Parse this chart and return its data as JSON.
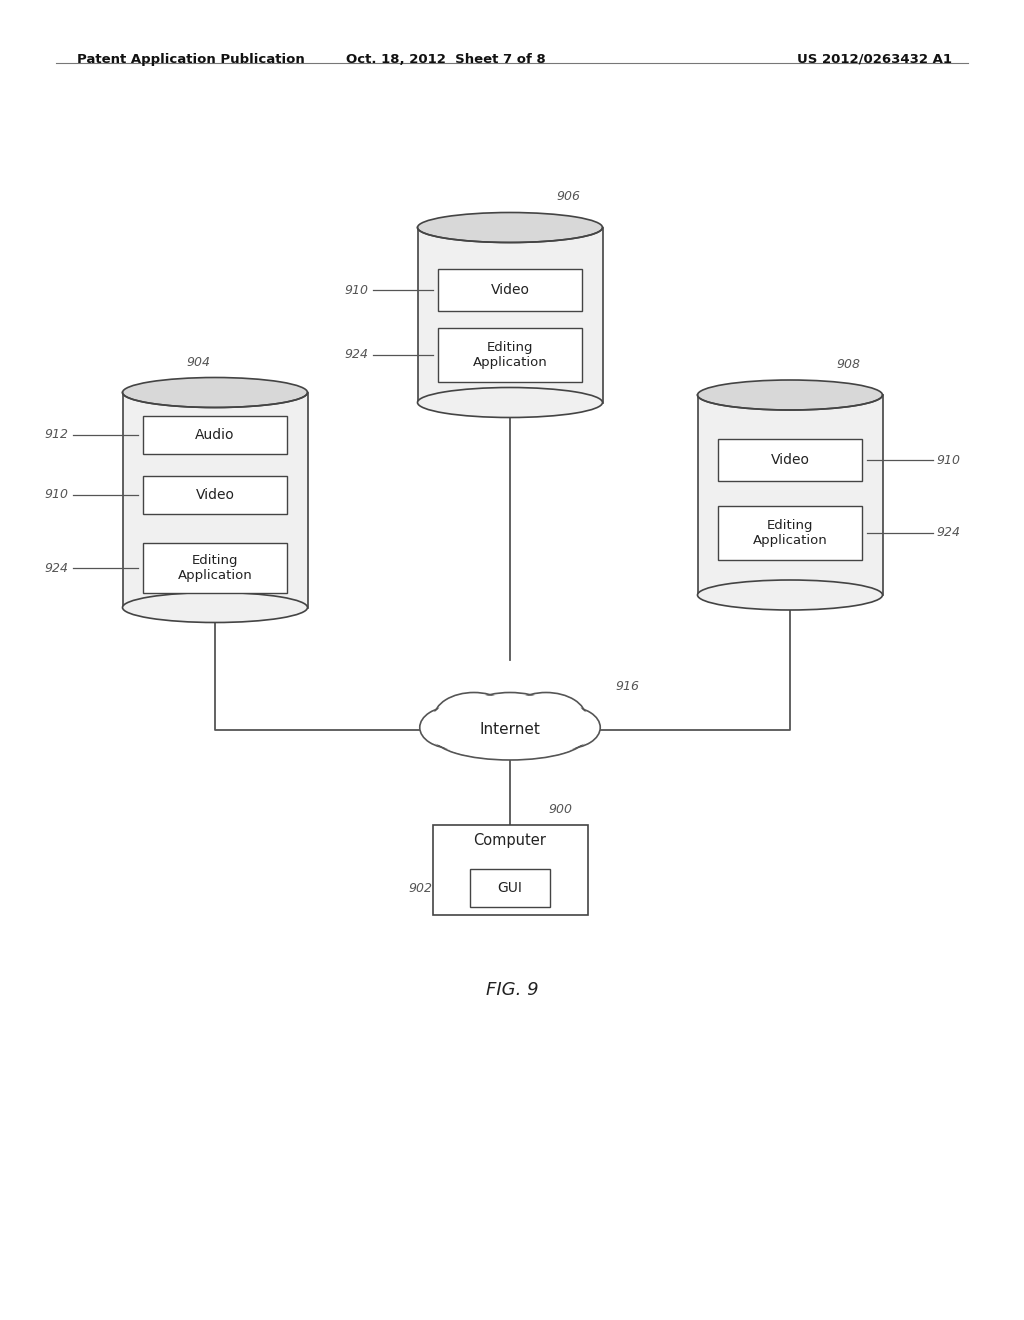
{
  "bg_color": "#ffffff",
  "header_left": "Patent Application Publication",
  "header_center": "Oct. 18, 2012  Sheet 7 of 8",
  "header_right": "US 2012/0263432 A1",
  "fig_label": "FIG. 9",
  "line_color": "#555555",
  "box_fill": "#f0f0f0",
  "box_edge": "#444444",
  "text_color": "#222222",
  "label_color": "#555555"
}
